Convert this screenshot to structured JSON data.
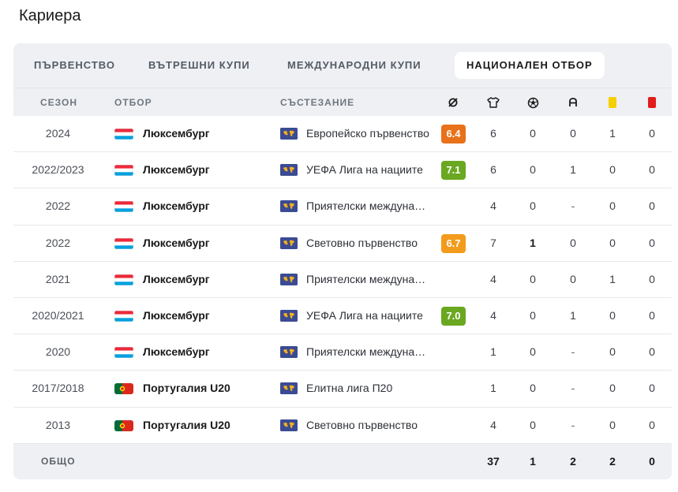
{
  "title": "Кариера",
  "tabs": [
    {
      "label": "ПЪРВЕНСТВО",
      "active": false
    },
    {
      "label": "ВЪТРЕШНИ КУПИ",
      "active": false
    },
    {
      "label": "МЕЖДУНАРОДНИ КУПИ",
      "active": false
    },
    {
      "label": "НАЦИОНАЛЕН ОТБОР",
      "active": true
    }
  ],
  "headers": {
    "season": "СЕЗОН",
    "team": "ОТБОР",
    "competition": "СЪСТЕЗАНИЕ",
    "rating_icon": "rating-icon",
    "apps_icon": "shirt-icon",
    "goals_icon": "ball-icon",
    "assists_icon": "assist-icon",
    "yellow_icon": "yellow-card-icon",
    "red_icon": "red-card-icon"
  },
  "colors": {
    "rating_orange_dark": "#e8711a",
    "rating_orange": "#f29b1d",
    "rating_green": "#6aa821",
    "yellow_card": "#f7cf00",
    "red_card": "#e11d1d"
  },
  "rows": [
    {
      "season": "2024",
      "flag": "luxembourg",
      "team": "Люксембург",
      "competition": "Европейско първенство",
      "rating": "6.4",
      "rating_color": "#e8711a",
      "apps": "6",
      "goals": "0",
      "assists": "0",
      "yellow": "1",
      "red": "0"
    },
    {
      "season": "2022/2023",
      "flag": "luxembourg",
      "team": "Люксембург",
      "competition": "УЕФА Лига на нациите",
      "rating": "7.1",
      "rating_color": "#6aa821",
      "apps": "6",
      "goals": "0",
      "assists": "1",
      "yellow": "0",
      "red": "0"
    },
    {
      "season": "2022",
      "flag": "luxembourg",
      "team": "Люксембург",
      "competition": "Приятелски международни",
      "rating": "",
      "rating_color": "",
      "apps": "4",
      "goals": "0",
      "assists": "-",
      "yellow": "0",
      "red": "0"
    },
    {
      "season": "2022",
      "flag": "luxembourg",
      "team": "Люксембург",
      "competition": "Световно първенство",
      "rating": "6.7",
      "rating_color": "#f29b1d",
      "apps": "7",
      "goals": "1",
      "assists": "0",
      "yellow": "0",
      "red": "0",
      "goals_bold": true
    },
    {
      "season": "2021",
      "flag": "luxembourg",
      "team": "Люксембург",
      "competition": "Приятелски международни",
      "rating": "",
      "rating_color": "",
      "apps": "4",
      "goals": "0",
      "assists": "0",
      "yellow": "1",
      "red": "0"
    },
    {
      "season": "2020/2021",
      "flag": "luxembourg",
      "team": "Люксембург",
      "competition": "УЕФА Лига на нациите",
      "rating": "7.0",
      "rating_color": "#6aa821",
      "apps": "4",
      "goals": "0",
      "assists": "1",
      "yellow": "0",
      "red": "0"
    },
    {
      "season": "2020",
      "flag": "luxembourg",
      "team": "Люксембург",
      "competition": "Приятелски международни",
      "rating": "",
      "rating_color": "",
      "apps": "1",
      "goals": "0",
      "assists": "-",
      "yellow": "0",
      "red": "0"
    },
    {
      "season": "2017/2018",
      "flag": "portugal",
      "team": "Португалия U20",
      "competition": "Елитна лига П20",
      "rating": "",
      "rating_color": "",
      "apps": "1",
      "goals": "0",
      "assists": "-",
      "yellow": "0",
      "red": "0"
    },
    {
      "season": "2013",
      "flag": "portugal",
      "team": "Португалия U20",
      "competition": "Световно първенство",
      "rating": "",
      "rating_color": "",
      "apps": "4",
      "goals": "0",
      "assists": "-",
      "yellow": "0",
      "red": "0"
    }
  ],
  "total": {
    "label": "ОБЩО",
    "apps": "37",
    "goals": "1",
    "assists": "2",
    "yellow": "2",
    "red": "0"
  }
}
